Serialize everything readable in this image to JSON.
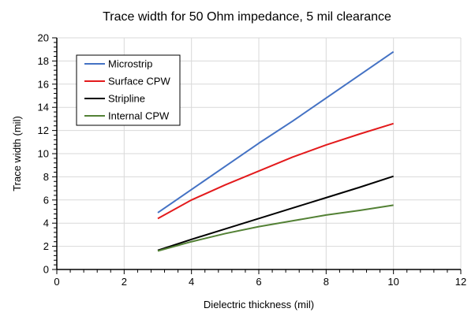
{
  "chart_data": {
    "type": "line",
    "title": "Trace width for 50 Ohm impedance, 5 mil clearance",
    "xlabel": "Dielectric thickness (mil)",
    "ylabel": "Trace width (mil)",
    "xlim": [
      0,
      12
    ],
    "ylim": [
      0,
      20
    ],
    "xticks": [
      0,
      2,
      4,
      6,
      8,
      10,
      12
    ],
    "yticks": [
      0,
      2,
      4,
      6,
      8,
      10,
      12,
      14,
      16,
      18,
      20
    ],
    "grid": true,
    "legend_position": "top-left",
    "x": [
      3,
      4,
      5,
      6,
      7,
      8,
      9,
      10
    ],
    "series": [
      {
        "name": "Microstrip",
        "color": "#4472C4",
        "values": [
          4.9,
          6.9,
          8.9,
          10.9,
          12.8,
          14.8,
          16.8,
          18.8
        ]
      },
      {
        "name": "Surface CPW",
        "color": "#E31A1C",
        "values": [
          4.4,
          6.0,
          7.3,
          8.5,
          9.7,
          10.75,
          11.7,
          12.6
        ]
      },
      {
        "name": "Stripline",
        "color": "#000000",
        "values": [
          1.65,
          2.6,
          3.5,
          4.4,
          5.3,
          6.2,
          7.1,
          8.05
        ]
      },
      {
        "name": "Internal CPW",
        "color": "#538135",
        "values": [
          1.6,
          2.4,
          3.1,
          3.7,
          4.2,
          4.7,
          5.1,
          5.55
        ]
      }
    ]
  }
}
